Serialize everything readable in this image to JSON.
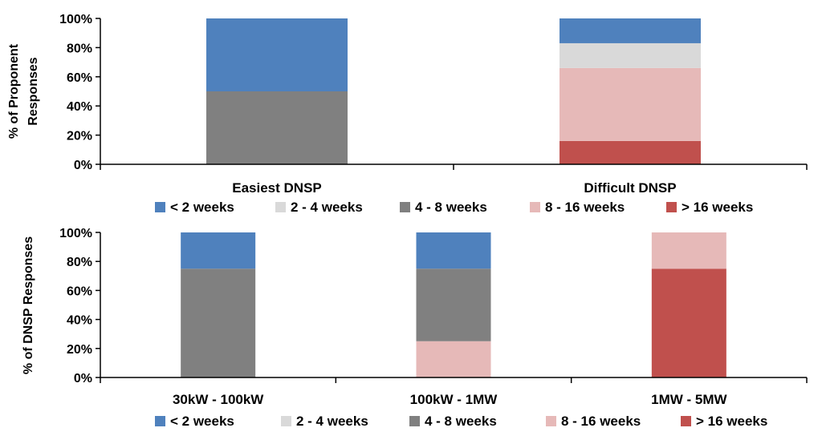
{
  "chart_data": [
    {
      "type": "bar",
      "stacked": true,
      "percent": true,
      "ylabel_lines": [
        "% of  Proponent",
        "Responses"
      ],
      "ylim": [
        0,
        100
      ],
      "yticks": [
        "0%",
        "20%",
        "40%",
        "60%",
        "80%",
        "100%"
      ],
      "categories": [
        "Easiest DNSP",
        "Difficult DNSP"
      ],
      "series": [
        {
          "name": "< 2 weeks",
          "color": "#4f81bd",
          "values": [
            50,
            17
          ]
        },
        {
          "name": "2 - 4 weeks",
          "color": "#d9d9d9",
          "values": [
            0,
            17
          ]
        },
        {
          "name": "4 - 8 weeks",
          "color": "#808080",
          "values": [
            50,
            0
          ]
        },
        {
          "name": "8 - 16 weeks",
          "color": "#e6b9b8",
          "values": [
            0,
            50
          ]
        },
        {
          "name": "> 16 weeks",
          "color": "#c0504d",
          "values": [
            0,
            16
          ]
        }
      ],
      "legend_position": "bottom",
      "grid": false
    },
    {
      "type": "bar",
      "stacked": true,
      "percent": true,
      "ylabel_lines": [
        "% of DNSP Responses"
      ],
      "ylim": [
        0,
        100
      ],
      "yticks": [
        "0%",
        "20%",
        "40%",
        "60%",
        "80%",
        "100%"
      ],
      "categories": [
        "30kW - 100kW",
        "100kW - 1MW",
        "1MW - 5MW"
      ],
      "series": [
        {
          "name": "< 2 weeks",
          "color": "#4f81bd",
          "values": [
            25,
            25,
            0
          ]
        },
        {
          "name": "2 - 4 weeks",
          "color": "#d9d9d9",
          "values": [
            0,
            0,
            0
          ]
        },
        {
          "name": "4 - 8 weeks",
          "color": "#808080",
          "values": [
            75,
            50,
            0
          ]
        },
        {
          "name": "8 - 16 weeks",
          "color": "#e6b9b8",
          "values": [
            0,
            25,
            25
          ]
        },
        {
          "name": "> 16 weeks",
          "color": "#c0504d",
          "values": [
            0,
            0,
            75
          ]
        }
      ],
      "legend_position": "bottom",
      "grid": false
    }
  ]
}
